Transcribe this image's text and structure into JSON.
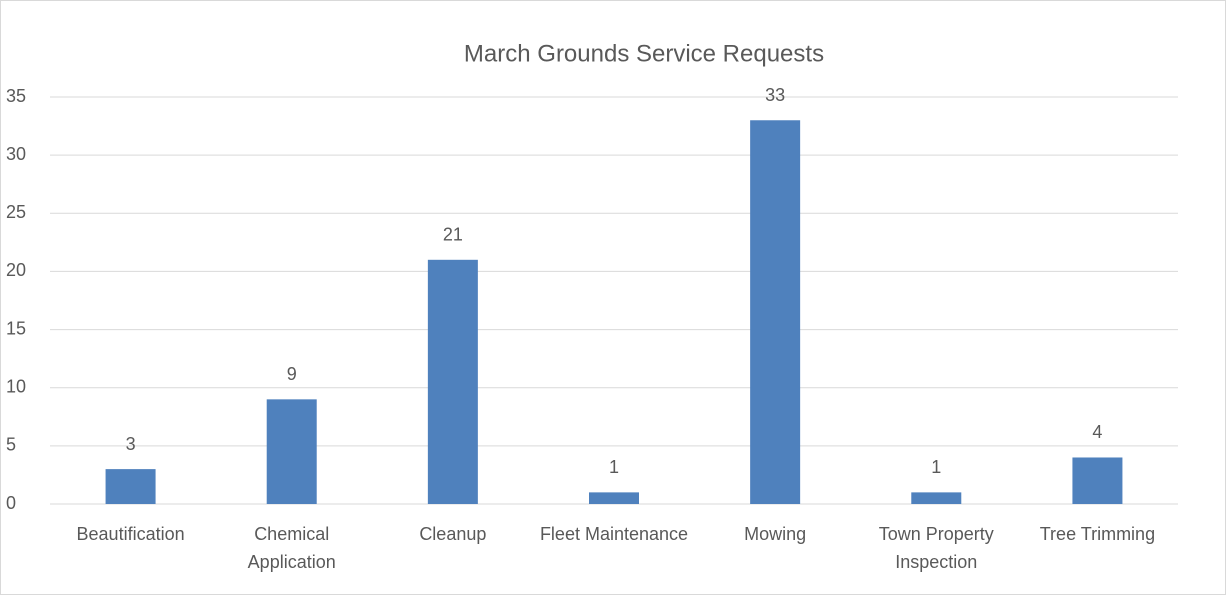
{
  "chart_data": {
    "type": "bar",
    "title": "March Grounds Service Requests",
    "categories": [
      "Beautification",
      "Chemical Application",
      "Cleanup",
      "Fleet Maintenance",
      "Mowing",
      "Town Property Inspection",
      "Tree Trimming"
    ],
    "values": [
      3,
      9,
      21,
      1,
      33,
      1,
      4
    ],
    "color": "#4f81bd",
    "ylim": [
      0,
      35
    ],
    "yticks": [
      0,
      5,
      10,
      15,
      20,
      25,
      30,
      35
    ],
    "grid": true,
    "data_labels": true
  }
}
